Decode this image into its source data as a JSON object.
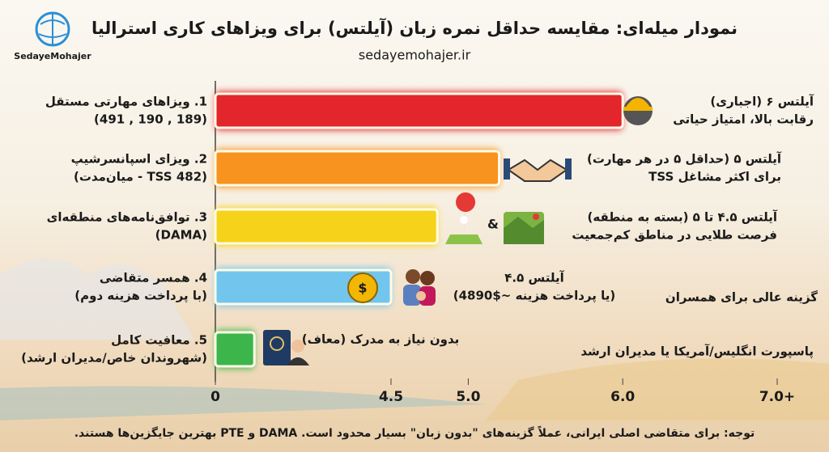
{
  "logo": "SedayeMohajer",
  "chart_data": {
    "type": "hbar",
    "title": "نمودار میله‌ای: مقایسه حداقل نمره زبان (آیلتس) برای ویزاهای کاری استرالیا",
    "subtitle": "sedayemohajer.ir",
    "categories": [
      "1. ویزاهای مهارتی مستقل",
      "2. ویزای اسپانسرشیپ",
      "3. توافق‌نامه‌های منطقه‌ای",
      "4. همسر متقاضی",
      "5. معافیت کامل"
    ],
    "category_notes": [
      "(189 , 190 , 491)",
      "(TSS 482 - میان‌مدت)",
      "(DAMA)",
      "(با پرداخت هزینه دوم)",
      "(شهروندان خاص/مدیران ارشد)"
    ],
    "values": [
      6.0,
      5.2,
      4.8,
      4.5,
      1.0
    ],
    "colors": [
      "#e3262b",
      "#f7931e",
      "#f6d31a",
      "#72c6ee",
      "#3cb54a"
    ],
    "xlim": [
      0,
      7
    ],
    "xticks": [
      0,
      4.5,
      {
        "value": 5,
        "label": "5.0"
      },
      {
        "value": 6,
        "label": "6.0"
      },
      {
        "value": 7,
        "label": "7.0+"
      }
    ],
    "annotations": [
      {
        "lines": [
          "آیلتس ۶ (اجباری)",
          "رقابت بالا، امتیاز حیاتی"
        ]
      },
      {
        "lines": [
          "آیلتس ۵ (حداقل ۵ در هر مهارت)",
          "برای اکثر مشاغل TSS"
        ]
      },
      {
        "lines": [
          "آیلتس ۴.۵ تا ۵ (بسته به منطقه)",
          "فرصت طلایی در مناطق کم‌جمعیت"
        ]
      },
      {
        "lines": [
          "آیلتس ۴.۵",
          "(یا پرداخت هزینه ~$4890)"
        ]
      },
      {
        "lines": [
          "گزینه عالی برای همسران"
        ]
      },
      {
        "lines": [
          "بدون نیاز به مدرک (معاف)"
        ]
      },
      {
        "lines": [
          "پاسپورت انگلیس/آمریکا یا مدیران ارشد"
        ]
      }
    ],
    "connector": "&",
    "note": "توجه: برای متقاضی اصلی ایرانی، عملاً گزینه‌های \"بدون زبان\" بسیار محدود است. DAMA و PTE بهترین جایگزین‌ها هستند."
  }
}
